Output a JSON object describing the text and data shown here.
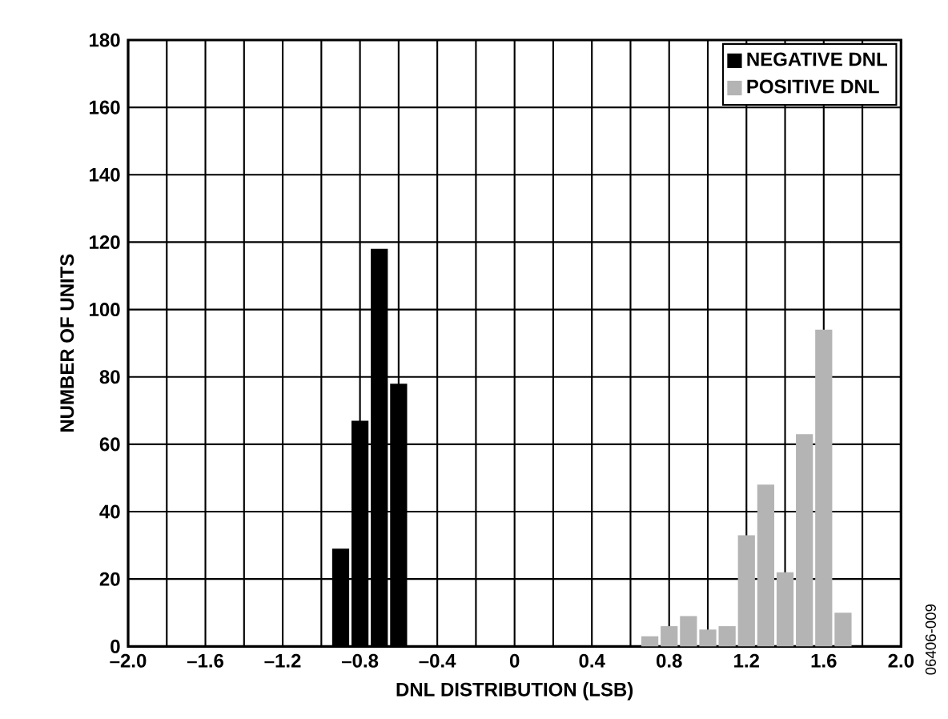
{
  "chart_data": {
    "type": "bar",
    "xlabel": "DNL DISTRIBUTION (LSB)",
    "ylabel": "NUMBER OF UNITS",
    "series": [
      {
        "name": "NEGATIVE DNL",
        "color": "#000000",
        "x": [
          -0.9,
          -0.8,
          -0.7,
          -0.6
        ],
        "values": [
          29,
          67,
          118,
          78
        ]
      },
      {
        "name": "POSITIVE DNL",
        "color": "#b4b4b4",
        "x": [
          0.7,
          0.8,
          0.9,
          1.0,
          1.1,
          1.2,
          1.3,
          1.4,
          1.5,
          1.6,
          1.7
        ],
        "values": [
          3,
          6,
          9,
          5,
          6,
          33,
          48,
          22,
          63,
          94,
          10
        ]
      }
    ],
    "xlim": [
      -2.0,
      2.0
    ],
    "ylim": [
      0,
      180
    ],
    "xticks": [
      {
        "value": -2.0,
        "label": "–2.0"
      },
      {
        "value": -1.8,
        "label": null
      },
      {
        "value": -1.6,
        "label": "–1.6"
      },
      {
        "value": -1.4,
        "label": null
      },
      {
        "value": -1.2,
        "label": "–1.2"
      },
      {
        "value": -1.0,
        "label": null
      },
      {
        "value": -0.8,
        "label": "–0.8"
      },
      {
        "value": -0.6,
        "label": null
      },
      {
        "value": -0.4,
        "label": "–0.4"
      },
      {
        "value": -0.2,
        "label": null
      },
      {
        "value": 0,
        "label": "0"
      },
      {
        "value": 0.2,
        "label": null
      },
      {
        "value": 0.4,
        "label": "0.4"
      },
      {
        "value": 0.6,
        "label": null
      },
      {
        "value": 0.8,
        "label": "0.8"
      },
      {
        "value": 1.0,
        "label": null
      },
      {
        "value": 1.2,
        "label": "1.2"
      },
      {
        "value": 1.4,
        "label": null
      },
      {
        "value": 1.6,
        "label": "1.6"
      },
      {
        "value": 1.8,
        "label": null
      },
      {
        "value": 2.0,
        "label": "2.0"
      }
    ],
    "yticks": [
      0,
      20,
      40,
      60,
      80,
      100,
      120,
      140,
      160,
      180
    ],
    "grid": true,
    "legend": "top right",
    "annotations": [
      "06406-009"
    ]
  }
}
